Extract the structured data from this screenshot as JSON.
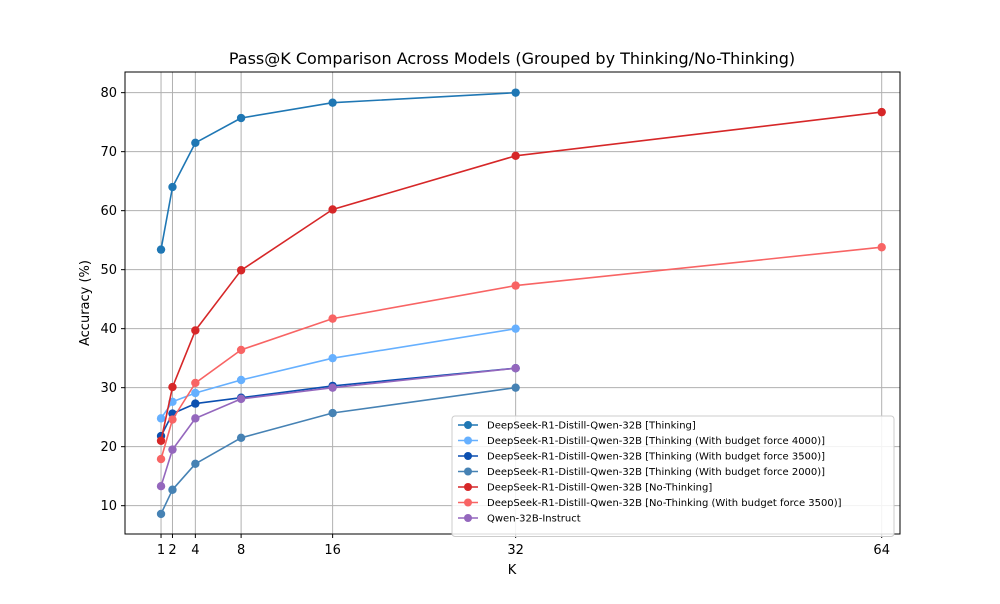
{
  "chart_data": {
    "type": "line",
    "title": "Pass@K Comparison Across Models (Grouped by Thinking/No-Thinking)",
    "xlabel": "K",
    "ylabel": "Accuracy (%)",
    "x_ticks": [
      1,
      2,
      4,
      8,
      16,
      32,
      64
    ],
    "y_ticks": [
      10,
      20,
      30,
      40,
      50,
      60,
      70,
      80
    ],
    "xlim": [
      -2.15,
      65.6
    ],
    "ylim": [
      5.2,
      83.5
    ],
    "grid": true,
    "legend_position": "lower-right",
    "series": [
      {
        "name": "DeepSeek-R1-Distill-Qwen-32B [Thinking]",
        "color": "#1f77b4",
        "x": [
          1,
          2,
          4,
          8,
          16,
          32
        ],
        "y": [
          53.4,
          64.0,
          71.5,
          75.7,
          78.3,
          80.0
        ]
      },
      {
        "name": "DeepSeek-R1-Distill-Qwen-32B [Thinking (With budget force 4000)]",
        "color": "#66b0ff",
        "x": [
          1,
          2,
          4,
          8,
          16,
          32
        ],
        "y": [
          24.8,
          27.6,
          29.1,
          31.3,
          35.0,
          40.0
        ]
      },
      {
        "name": "DeepSeek-R1-Distill-Qwen-32B [Thinking (With budget force 3500)]",
        "color": "#0b4fb0",
        "x": [
          1,
          2,
          4,
          8,
          16,
          32
        ],
        "y": [
          21.8,
          25.6,
          27.3,
          28.3,
          30.3,
          33.3
        ]
      },
      {
        "name": "DeepSeek-R1-Distill-Qwen-32B [Thinking (With budget force 2000)]",
        "color": "#4682b4",
        "x": [
          1,
          2,
          4,
          8,
          16,
          32
        ],
        "y": [
          8.6,
          12.7,
          17.1,
          21.5,
          25.7,
          30.0
        ]
      },
      {
        "name": "DeepSeek-R1-Distill-Qwen-32B [No-Thinking]",
        "color": "#d62728",
        "x": [
          1,
          2,
          4,
          8,
          16,
          32,
          64
        ],
        "y": [
          21.0,
          30.1,
          39.7,
          49.9,
          60.2,
          69.3,
          76.7
        ]
      },
      {
        "name": "DeepSeek-R1-Distill-Qwen-32B [No-Thinking (With budget force 3500)]",
        "color": "#f86464",
        "x": [
          1,
          2,
          4,
          8,
          16,
          32,
          64
        ],
        "y": [
          17.9,
          24.6,
          30.8,
          36.4,
          41.7,
          47.3,
          53.8
        ]
      },
      {
        "name": "Qwen-32B-Instruct",
        "color": "#9467bd",
        "x": [
          1,
          2,
          4,
          8,
          16,
          32
        ],
        "y": [
          13.3,
          19.5,
          24.8,
          28.1,
          30.0,
          33.3
        ]
      }
    ]
  }
}
